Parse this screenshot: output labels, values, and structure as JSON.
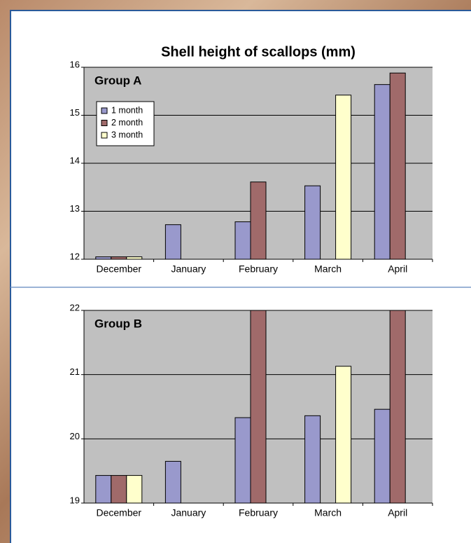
{
  "chart_data": [
    {
      "type": "bar",
      "title": "Shell height of scallops (mm)",
      "annotation": "Group A",
      "categories": [
        "December",
        "January",
        "February",
        "March",
        "April"
      ],
      "series": [
        {
          "name": "1 month",
          "color": "#9999cc",
          "values": [
            12.05,
            12.72,
            12.78,
            13.53,
            15.64
          ]
        },
        {
          "name": "2 month",
          "color": "#a06a6a",
          "values": [
            12.05,
            null,
            13.61,
            null,
            15.88
          ]
        },
        {
          "name": "3 month",
          "color": "#ffffcc",
          "values": [
            12.05,
            null,
            null,
            15.42,
            null
          ]
        }
      ],
      "ylim": [
        12,
        16
      ],
      "yticks": [
        12,
        13,
        14,
        15,
        16
      ],
      "grid": true,
      "legend": "upper left"
    },
    {
      "type": "bar",
      "annotation": "Group B",
      "categories": [
        "December",
        "January",
        "February",
        "March",
        "April"
      ],
      "series": [
        {
          "color": "#9999cc",
          "values": [
            19.43,
            19.65,
            20.33,
            20.36,
            20.46
          ]
        },
        {
          "color": "#a06a6a",
          "values": [
            19.43,
            null,
            22,
            null,
            22
          ]
        },
        {
          "color": "#ffffcc",
          "values": [
            19.43,
            null,
            null,
            21.13,
            null
          ]
        }
      ],
      "ylim": [
        19,
        22
      ],
      "yticks": [
        19,
        20,
        21,
        22
      ],
      "grid": true
    }
  ]
}
